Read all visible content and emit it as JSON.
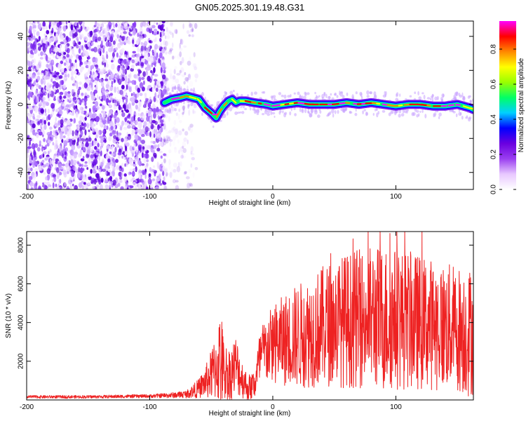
{
  "title": "GN05.2025.301.19.48.G31",
  "colors": {
    "snr_line": "#ee2222",
    "frame": "#000000",
    "colormap": [
      "#ffffff",
      "#e8c8ff",
      "#9a3ff0",
      "#6a00e0",
      "#0000ff",
      "#00d0ff",
      "#00ff66",
      "#99ff00",
      "#ffff00",
      "#ff8800",
      "#ff0000",
      "#ff00ff"
    ]
  },
  "chart_data": [
    {
      "type": "heatmap",
      "name": "spectrogram",
      "xlabel": "Height of straight line (km)",
      "ylabel": "Frequency (Hz)",
      "xlim": [
        -200,
        163
      ],
      "ylim": [
        -50,
        49
      ],
      "xticks": [
        -200,
        -100,
        0,
        100
      ],
      "xtick_labels": [
        "-200",
        "-100",
        "0",
        "100"
      ],
      "yticks": [
        -40,
        -20,
        0,
        20,
        40
      ],
      "ytick_labels": [
        "-40",
        "-20",
        "0",
        "20",
        "40"
      ],
      "noise_region_x": [
        -200,
        -72
      ],
      "signal_ridge": {
        "x": [
          -88,
          -82,
          -75,
          -70,
          -65,
          -60,
          -55,
          -50,
          -46,
          -43,
          -40,
          -36,
          -33,
          -30,
          -27,
          -22,
          -15,
          -5,
          0,
          10,
          20,
          30,
          40,
          50,
          60,
          70,
          80,
          90,
          100,
          110,
          120,
          130,
          140,
          150,
          160,
          163
        ],
        "y": [
          1,
          3,
          4,
          5,
          4,
          3,
          -2,
          -5,
          -8,
          -4,
          -1,
          2,
          3,
          1,
          2,
          2,
          1,
          0,
          -1,
          0,
          1,
          0,
          0,
          0,
          1,
          0,
          1,
          0,
          -1,
          0,
          0,
          -1,
          -1,
          0,
          -2,
          -3
        ]
      },
      "colorbar": {
        "label": "Normalized spectral amplitude",
        "range": [
          0,
          0.96
        ],
        "ticks": [
          0.0,
          0.2,
          0.4,
          0.6,
          0.8
        ],
        "tick_labels": [
          "0.0",
          "0.2",
          "0.4",
          "0.6",
          "0.8"
        ]
      }
    },
    {
      "type": "line",
      "name": "snr",
      "xlabel": "Height of straight line (km)",
      "ylabel": "SNR (10 * v/v)",
      "xlim": [
        -200,
        163
      ],
      "ylim": [
        0,
        8700
      ],
      "xticks": [
        -200,
        -100,
        0,
        100
      ],
      "xtick_labels": [
        "-200",
        "-100",
        "0",
        "100"
      ],
      "yticks": [
        2000,
        4000,
        6000,
        8000
      ],
      "ytick_labels": [
        "2000",
        "4000",
        "6000",
        "8000"
      ],
      "envelope": {
        "x": [
          -200,
          -150,
          -100,
          -80,
          -70,
          -60,
          -55,
          -50,
          -45,
          -42,
          -40,
          -35,
          -30,
          -25,
          -20,
          -15,
          -10,
          -5,
          0,
          10,
          20,
          30,
          40,
          50,
          60,
          70,
          80,
          90,
          100,
          110,
          120,
          130,
          140,
          150,
          160,
          163
        ],
        "mean": [
          160,
          160,
          200,
          250,
          300,
          600,
          900,
          1300,
          1800,
          2200,
          1500,
          1300,
          1800,
          1100,
          600,
          800,
          2200,
          2600,
          2900,
          3100,
          3300,
          3500,
          3800,
          4000,
          4100,
          4200,
          4300,
          4200,
          4200,
          4100,
          4000,
          3900,
          3800,
          3700,
          3500,
          3600
        ],
        "amp": [
          80,
          80,
          90,
          150,
          200,
          500,
          800,
          1300,
          1900,
          2800,
          1600,
          1400,
          1600,
          1000,
          700,
          800,
          1600,
          1800,
          2000,
          2400,
          2700,
          2900,
          3100,
          3300,
          3500,
          3600,
          3700,
          3800,
          3700,
          3600,
          3500,
          3400,
          3300,
          3300,
          3400,
          3400
        ]
      }
    }
  ]
}
